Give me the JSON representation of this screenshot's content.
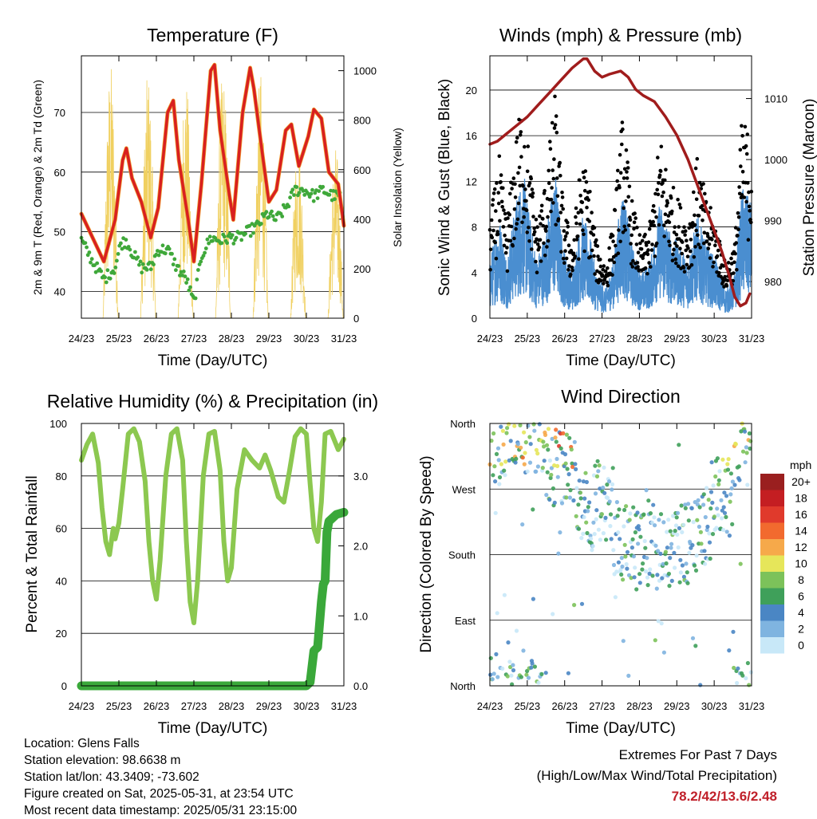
{
  "xticks": [
    "24/23",
    "25/23",
    "26/23",
    "27/23",
    "28/23",
    "29/23",
    "30/23",
    "31/23"
  ],
  "xlabel": "Time (Day/UTC)",
  "temperature": {
    "title": "Temperature (F)",
    "ylabel_left": "2m & 9m T (Red, Orange) & 2m Td (Green)",
    "ylabel_right": "Solar Insolation (Yellow)",
    "left_ticks": [
      40,
      50,
      60,
      70
    ],
    "right_ticks": [
      0,
      200,
      400,
      600,
      800,
      1000
    ],
    "ylim_left": [
      35.5,
      79.5
    ],
    "ylim_right": [
      0,
      1060
    ],
    "temp_2m": [
      [
        0,
        53
      ],
      [
        0.3,
        49
      ],
      [
        0.6,
        45
      ],
      [
        0.9,
        52
      ],
      [
        1.1,
        62
      ],
      [
        1.2,
        64
      ],
      [
        1.35,
        59
      ],
      [
        1.6,
        55
      ],
      [
        1.85,
        49
      ],
      [
        2.05,
        54
      ],
      [
        2.3,
        70
      ],
      [
        2.45,
        72
      ],
      [
        2.6,
        62
      ],
      [
        2.85,
        52
      ],
      [
        3.0,
        45
      ],
      [
        3.2,
        58
      ],
      [
        3.45,
        77
      ],
      [
        3.55,
        78
      ],
      [
        3.7,
        67
      ],
      [
        3.95,
        56
      ],
      [
        4.05,
        52
      ],
      [
        4.3,
        70
      ],
      [
        4.5,
        77.5
      ],
      [
        4.6,
        74
      ],
      [
        4.85,
        62
      ],
      [
        5.0,
        55
      ],
      [
        5.2,
        57
      ],
      [
        5.45,
        67
      ],
      [
        5.6,
        68
      ],
      [
        5.8,
        61
      ],
      [
        6.05,
        66
      ],
      [
        6.2,
        70.5
      ],
      [
        6.4,
        69
      ],
      [
        6.6,
        60
      ],
      [
        6.85,
        58
      ],
      [
        7.0,
        51
      ]
    ],
    "dewpoint_2m": [
      [
        0,
        48.5
      ],
      [
        0.3,
        45
      ],
      [
        0.6,
        42
      ],
      [
        0.9,
        44
      ],
      [
        1.05,
        48
      ],
      [
        1.2,
        48.5
      ],
      [
        1.4,
        46
      ],
      [
        1.6,
        44
      ],
      [
        1.85,
        44
      ],
      [
        2.05,
        47
      ],
      [
        2.3,
        47
      ],
      [
        2.55,
        44
      ],
      [
        2.8,
        42
      ],
      [
        3.0,
        38
      ],
      [
        3.2,
        46
      ],
      [
        3.45,
        49
      ],
      [
        3.7,
        48.5
      ],
      [
        3.95,
        49
      ],
      [
        4.2,
        49
      ],
      [
        4.45,
        50
      ],
      [
        4.7,
        51
      ],
      [
        4.95,
        53
      ],
      [
        5.2,
        52
      ],
      [
        5.45,
        54
      ],
      [
        5.7,
        57
      ],
      [
        5.95,
        57
      ],
      [
        6.2,
        56
      ],
      [
        6.45,
        57
      ],
      [
        6.7,
        56
      ],
      [
        6.9,
        56
      ],
      [
        7.0,
        49
      ]
    ],
    "solar_peaks": [
      [
        0.75,
        1040
      ],
      [
        0.86,
        1000
      ],
      [
        1.72,
        1000
      ],
      [
        1.8,
        820
      ],
      [
        2.77,
        1000
      ],
      [
        2.85,
        960
      ],
      [
        3.75,
        1010
      ],
      [
        3.82,
        900
      ],
      [
        4.72,
        1000
      ],
      [
        4.8,
        880
      ],
      [
        5.73,
        760
      ],
      [
        5.8,
        620
      ],
      [
        6.72,
        700
      ],
      [
        6.8,
        560
      ],
      [
        6.9,
        100
      ]
    ]
  },
  "winds": {
    "title": "Winds (mph) & Pressure (mb)",
    "ylabel_left": "Sonic Wind & Gust (Blue, Black)",
    "ylabel_right": "Station Pressure (Maroon)",
    "left_ticks": [
      0,
      4,
      8,
      12,
      16,
      20
    ],
    "right_ticks": [
      980,
      990,
      1000,
      1010
    ],
    "ylim_left": [
      0,
      23
    ],
    "ylim_right": [
      974,
      1017
    ],
    "pressure": [
      [
        0,
        1002.5
      ],
      [
        0.2,
        1003
      ],
      [
        0.4,
        1004
      ],
      [
        0.6,
        1005
      ],
      [
        0.8,
        1006
      ],
      [
        1.0,
        1007
      ],
      [
        1.3,
        1009
      ],
      [
        1.6,
        1011
      ],
      [
        1.9,
        1013
      ],
      [
        2.2,
        1015
      ],
      [
        2.5,
        1016.5
      ],
      [
        2.6,
        1016.5
      ],
      [
        2.8,
        1014.5
      ],
      [
        3.0,
        1013.5
      ],
      [
        3.2,
        1014
      ],
      [
        3.5,
        1014.5
      ],
      [
        3.7,
        1013.5
      ],
      [
        3.9,
        1011.5
      ],
      [
        4.1,
        1010.5
      ],
      [
        4.4,
        1009.5
      ],
      [
        4.7,
        1007
      ],
      [
        5.0,
        1004
      ],
      [
        5.3,
        1000
      ],
      [
        5.6,
        995
      ],
      [
        5.9,
        990
      ],
      [
        6.2,
        985
      ],
      [
        6.4,
        981
      ],
      [
        6.55,
        977.5
      ],
      [
        6.7,
        976
      ],
      [
        6.85,
        976.5
      ],
      [
        6.95,
        978
      ]
    ],
    "wind_means": [
      [
        0,
        4
      ],
      [
        0.25,
        7
      ],
      [
        0.45,
        4
      ],
      [
        0.7,
        8
      ],
      [
        0.9,
        10
      ],
      [
        1.0,
        8
      ],
      [
        1.25,
        4
      ],
      [
        1.5,
        6
      ],
      [
        1.75,
        10
      ],
      [
        1.95,
        5
      ],
      [
        2.2,
        3
      ],
      [
        2.45,
        7
      ],
      [
        2.65,
        6
      ],
      [
        2.85,
        3
      ],
      [
        3.1,
        2
      ],
      [
        3.3,
        4
      ],
      [
        3.55,
        9
      ],
      [
        3.8,
        5
      ],
      [
        4.05,
        3
      ],
      [
        4.3,
        4
      ],
      [
        4.55,
        8
      ],
      [
        4.8,
        6
      ],
      [
        5.05,
        5
      ],
      [
        5.3,
        4
      ],
      [
        5.55,
        7
      ],
      [
        5.8,
        5
      ],
      [
        6.05,
        4
      ],
      [
        6.3,
        2
      ],
      [
        6.55,
        3
      ],
      [
        6.75,
        9
      ],
      [
        6.95,
        8
      ]
    ]
  },
  "humidity": {
    "title": "Relative Humidity (%) & Precipitation (in)",
    "ylabel_left": "Percent & Total Rainfall",
    "left_ticks": [
      0,
      20,
      40,
      60,
      80,
      100
    ],
    "right_ticks": [
      "0.0",
      "1.0",
      "2.0",
      "3.0"
    ],
    "ylim_left": [
      0,
      100
    ],
    "ylim_right": [
      0,
      3.75
    ],
    "rh": [
      [
        0,
        86
      ],
      [
        0.15,
        92
      ],
      [
        0.3,
        96
      ],
      [
        0.45,
        85
      ],
      [
        0.55,
        68
      ],
      [
        0.65,
        55
      ],
      [
        0.75,
        50
      ],
      [
        0.85,
        60
      ],
      [
        0.9,
        56
      ],
      [
        1.0,
        62
      ],
      [
        1.1,
        75
      ],
      [
        1.25,
        96
      ],
      [
        1.4,
        98
      ],
      [
        1.55,
        93
      ],
      [
        1.7,
        78
      ],
      [
        1.8,
        55
      ],
      [
        1.9,
        40
      ],
      [
        2.0,
        33
      ],
      [
        2.1,
        48
      ],
      [
        2.25,
        80
      ],
      [
        2.4,
        96
      ],
      [
        2.55,
        98
      ],
      [
        2.7,
        86
      ],
      [
        2.8,
        55
      ],
      [
        2.9,
        32
      ],
      [
        3.0,
        24
      ],
      [
        3.1,
        40
      ],
      [
        3.25,
        80
      ],
      [
        3.4,
        96
      ],
      [
        3.55,
        97
      ],
      [
        3.7,
        82
      ],
      [
        3.8,
        55
      ],
      [
        3.9,
        40
      ],
      [
        4.0,
        45
      ],
      [
        4.15,
        75
      ],
      [
        4.35,
        90
      ],
      [
        4.55,
        86
      ],
      [
        4.75,
        83
      ],
      [
        4.9,
        88
      ],
      [
        5.05,
        82
      ],
      [
        5.25,
        72
      ],
      [
        5.4,
        70
      ],
      [
        5.55,
        82
      ],
      [
        5.7,
        95
      ],
      [
        5.85,
        98
      ],
      [
        6.0,
        96
      ],
      [
        6.1,
        77
      ],
      [
        6.2,
        60
      ],
      [
        6.3,
        55
      ],
      [
        6.4,
        70
      ],
      [
        6.5,
        96
      ],
      [
        6.65,
        97
      ],
      [
        6.85,
        90
      ],
      [
        7.0,
        94
      ]
    ],
    "precip": [
      [
        0,
        0
      ],
      [
        6.0,
        0
      ],
      [
        6.1,
        0.05
      ],
      [
        6.2,
        0.5
      ],
      [
        6.3,
        0.55
      ],
      [
        6.4,
        1.2
      ],
      [
        6.45,
        1.45
      ],
      [
        6.5,
        1.5
      ],
      [
        6.55,
        2.2
      ],
      [
        6.6,
        2.35
      ],
      [
        6.8,
        2.45
      ],
      [
        7.0,
        2.48
      ]
    ]
  },
  "direction": {
    "title": "Wind Direction",
    "ylabel": "Direction (Colored By Speed)",
    "ticks": [
      "North",
      "East",
      "South",
      "West",
      "North"
    ],
    "tick_degrees": [
      0,
      90,
      180,
      270,
      360
    ],
    "centers": [
      [
        0.2,
        330
      ],
      [
        0.5,
        350
      ],
      [
        0.8,
        340
      ],
      [
        1.5,
        300
      ],
      [
        2.3,
        240
      ],
      [
        2.8,
        250
      ],
      [
        3.3,
        200
      ],
      [
        3.9,
        185
      ],
      [
        4.4,
        185
      ],
      [
        4.9,
        195
      ],
      [
        5.4,
        220
      ],
      [
        5.9,
        260
      ],
      [
        6.5,
        330
      ],
      [
        6.9,
        345
      ]
    ],
    "legend_title": "mph",
    "legend_labels": [
      "20+",
      "18",
      "16",
      "14",
      "12",
      "10",
      "8",
      "6",
      "4",
      "2",
      "0"
    ],
    "legend_colors": [
      "#9a1f1f",
      "#c41e22",
      "#e03a2c",
      "#f26a2e",
      "#f6a94a",
      "#e6e65a",
      "#7cc25a",
      "#3fa05a",
      "#4a86c4",
      "#7fb4e0",
      "#c8e8f8"
    ]
  },
  "info": {
    "location": "Location: Glens Falls",
    "elevation": "Station elevation: 98.6638 m",
    "latlon": "Station lat/lon: 43.3409; -73.602",
    "created": "Figure created on Sat, 2025-05-31, at 23:54 UTC",
    "recent": "Most recent data timestamp: 2025/05/31 23:15:00"
  },
  "extremes": {
    "line1": "Extremes For Past 7 Days",
    "line2": "(High/Low/Max Wind/Total Precipitation)",
    "values": "78.2/42/13.6/2.48"
  }
}
